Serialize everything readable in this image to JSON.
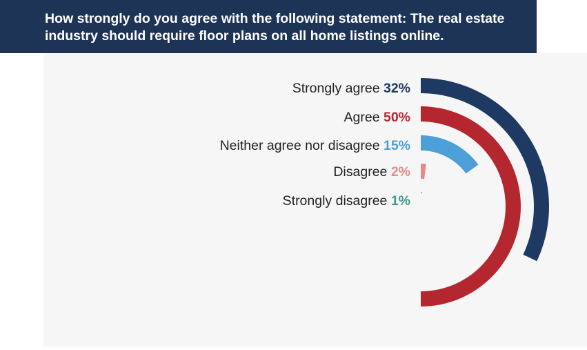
{
  "title": "How strongly do you agree with the following statement: The real estate industry should require floor plans on all home listings online.",
  "chart_data": {
    "type": "radial_bar",
    "categories": [
      "Strongly agree",
      "Agree",
      "Neither agree nor disagree",
      "Disagree",
      "Strongly disagree"
    ],
    "values": [
      32,
      50,
      15,
      2,
      1
    ],
    "value_labels": [
      "32%",
      "50%",
      "15%",
      "2%",
      "1%"
    ],
    "unit": "%",
    "max_value": 100,
    "colors": [
      "#1e3a63",
      "#b5272f",
      "#4d9fd8",
      "#e48a8a",
      "#3e9a8a"
    ],
    "legend_placement": "left of each arc"
  }
}
